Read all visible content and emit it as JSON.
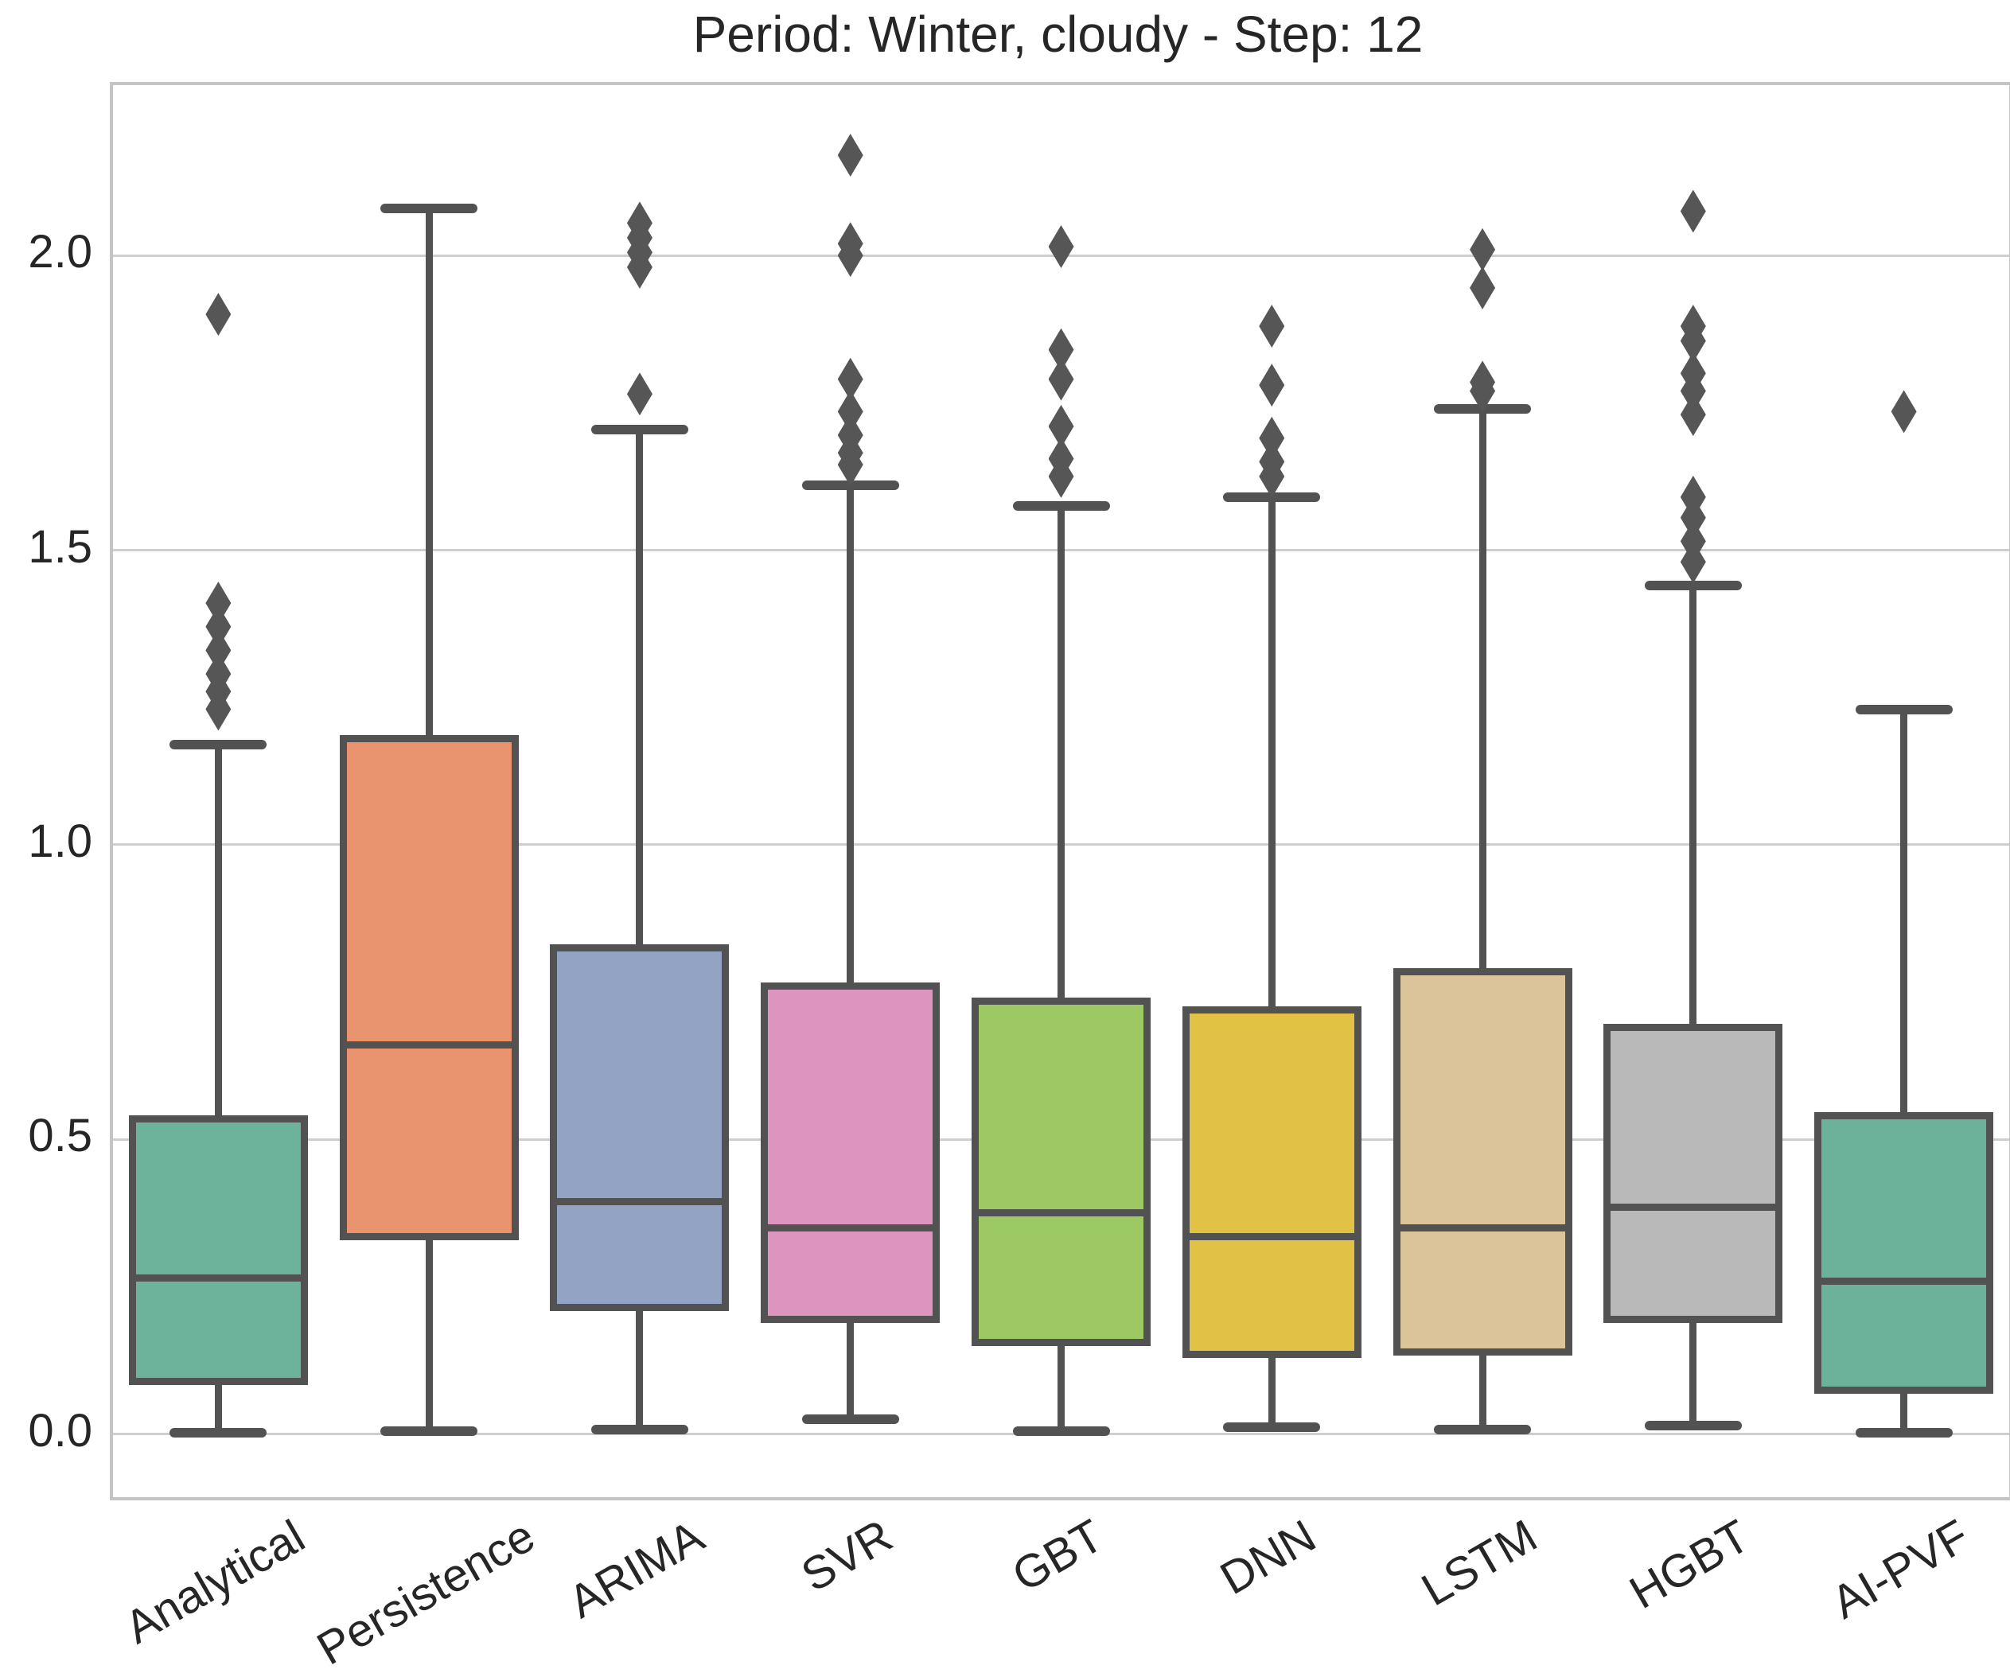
{
  "title": "Period: Winter, cloudy - Step: 12",
  "style": {
    "background": "#ffffff",
    "text_color": "#262626",
    "grid_color": "#cecece",
    "frame_color": "#c4c4c4",
    "edge_color": "#525252",
    "outlier_color": "#565656"
  },
  "chart_data": {
    "type": "boxplot",
    "title": "Period: Winter, cloudy - Step: 12",
    "xlabel": "",
    "ylabel": "",
    "grid": "horizontal",
    "legend": "none",
    "ylim": [
      -0.107,
      2.289
    ],
    "yticks": [
      0.0,
      0.5,
      1.0,
      1.5,
      2.0
    ],
    "ytick_labels": [
      "0.0",
      "0.5",
      "1.0",
      "1.5",
      "2.0"
    ],
    "categories": [
      "Analytical",
      "Persistence",
      "ARIMA",
      "SVR",
      "GBT",
      "DNN",
      "LSTM",
      "HGBT",
      "AI-PVF"
    ],
    "series": [
      {
        "name": "Analytical",
        "color": "#6db39c",
        "whisker_low": 0.003,
        "q1": 0.09,
        "median": 0.265,
        "q3": 0.535,
        "whisker_high": 1.17,
        "outliers": [
          1.23,
          1.26,
          1.29,
          1.33,
          1.37,
          1.41,
          1.9
        ]
      },
      {
        "name": "Persistence",
        "color": "#e9946f",
        "whisker_low": 0.005,
        "q1": 0.335,
        "median": 0.66,
        "q3": 1.18,
        "whisker_high": 2.08,
        "outliers": []
      },
      {
        "name": "ARIMA",
        "color": "#93a3c3",
        "whisker_low": 0.008,
        "q1": 0.215,
        "median": 0.395,
        "q3": 0.825,
        "whisker_high": 1.705,
        "outliers": [
          1.765,
          1.98,
          2.005,
          2.03,
          2.055
        ]
      },
      {
        "name": "SVR",
        "color": "#dd95bf",
        "whisker_low": 0.025,
        "q1": 0.195,
        "median": 0.35,
        "q3": 0.76,
        "whisker_high": 1.61,
        "outliers": [
          1.645,
          1.665,
          1.695,
          1.735,
          1.79,
          2.0,
          2.02,
          2.17
        ]
      },
      {
        "name": "GBT",
        "color": "#9cc963",
        "whisker_low": 0.005,
        "q1": 0.155,
        "median": 0.375,
        "q3": 0.735,
        "whisker_high": 1.575,
        "outliers": [
          1.625,
          1.655,
          1.71,
          1.79,
          1.84,
          2.015
        ]
      },
      {
        "name": "DNN",
        "color": "#e2c245",
        "whisker_low": 0.012,
        "q1": 0.135,
        "median": 0.335,
        "q3": 0.72,
        "whisker_high": 1.59,
        "outliers": [
          1.625,
          1.65,
          1.69,
          1.78,
          1.88
        ]
      },
      {
        "name": "LSTM",
        "color": "#dcc49a",
        "whisker_low": 0.008,
        "q1": 0.14,
        "median": 0.35,
        "q3": 0.785,
        "whisker_high": 1.74,
        "outliers": [
          1.77,
          1.785,
          1.945,
          2.01
        ]
      },
      {
        "name": "HGBT",
        "color": "#b9b9b9",
        "whisker_low": 0.015,
        "q1": 0.195,
        "median": 0.385,
        "q3": 0.69,
        "whisker_high": 1.44,
        "outliers": [
          1.48,
          1.515,
          1.555,
          1.59,
          1.73,
          1.77,
          1.8,
          1.855,
          1.88,
          2.075
        ]
      },
      {
        "name": "AI-PVF",
        "color": "#6cb29b",
        "whisker_low": 0.003,
        "q1": 0.075,
        "median": 0.26,
        "q3": 0.54,
        "whisker_high": 1.23,
        "outliers": [
          1.735
        ]
      }
    ]
  }
}
